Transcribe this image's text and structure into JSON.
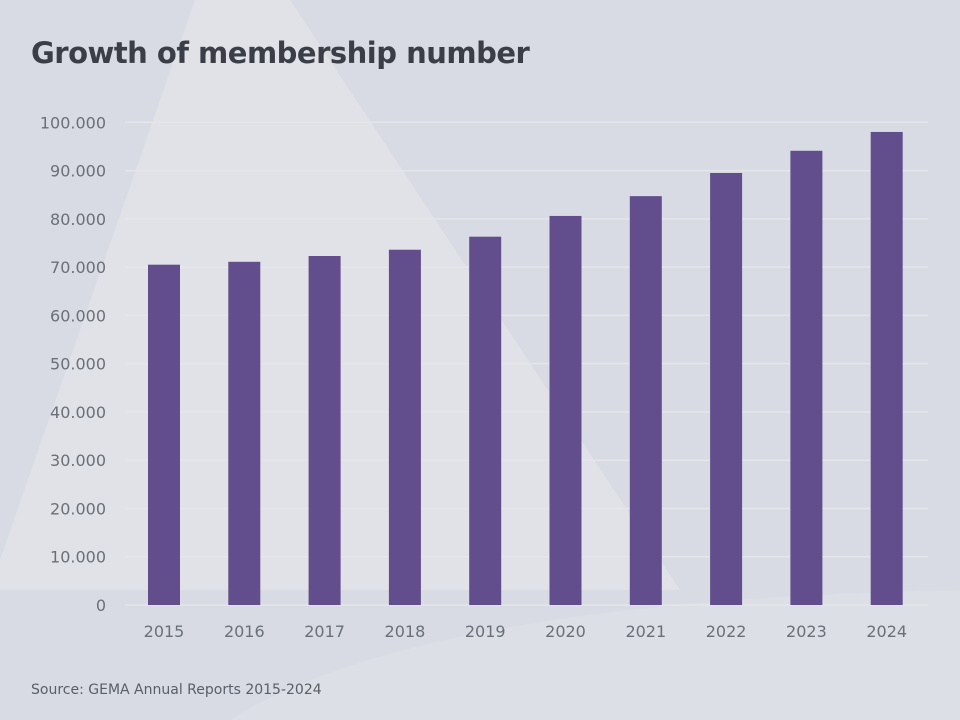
{
  "title": "Growth of membership number",
  "source": "Source: GEMA Annual Reports 2015-2024",
  "colors": {
    "bar": "#624e8c",
    "background": "#d8dbe3",
    "grid": "#e4e6ea",
    "text": "#3b3e46"
  },
  "chart_data": {
    "type": "bar",
    "title": "Growth of membership number",
    "xlabel": "",
    "ylabel": "",
    "categories": [
      "2015",
      "2016",
      "2017",
      "2018",
      "2019",
      "2020",
      "2021",
      "2022",
      "2023",
      "2024"
    ],
    "values": [
      70500,
      71100,
      72300,
      73600,
      76300,
      80600,
      84700,
      89500,
      94100,
      98000
    ],
    "ylim": [
      0,
      100000
    ],
    "yticks": [
      0,
      10000,
      20000,
      30000,
      40000,
      50000,
      60000,
      70000,
      80000,
      90000,
      100000
    ],
    "ytick_labels": [
      "0",
      "10.000",
      "20.000",
      "30.000",
      "40.000",
      "50.000",
      "60.000",
      "70.000",
      "80.000",
      "90.000",
      "100.000"
    ],
    "grid": true,
    "legend": "none"
  }
}
